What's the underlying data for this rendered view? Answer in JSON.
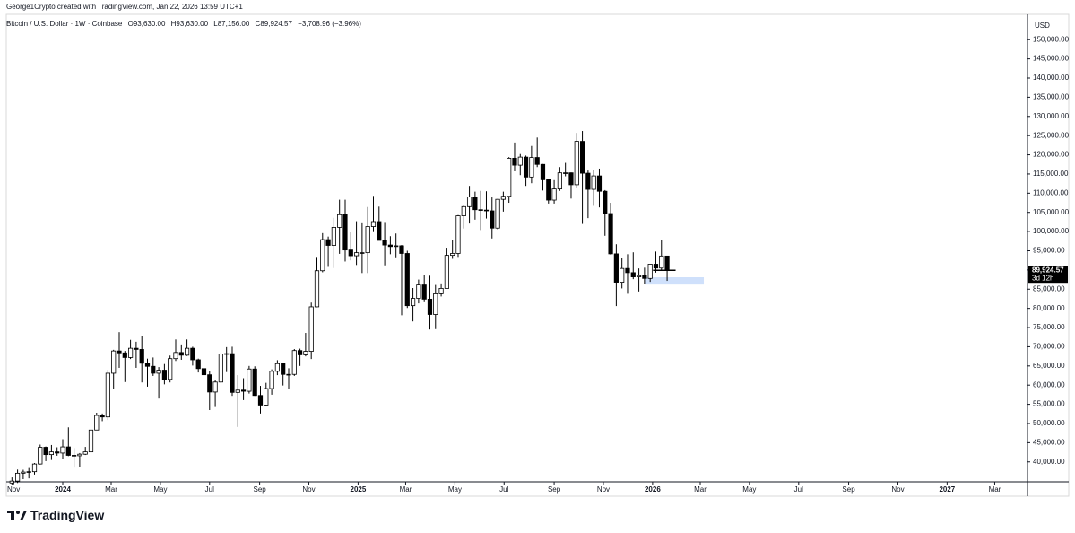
{
  "header": {
    "attribution": "George1Crypto created with TradingView.com, Jan 22, 2026 13:59 UTC+1",
    "brand": "TradingView"
  },
  "chart_data": {
    "type": "candlestick",
    "symbol": "Bitcoin / U.S. Dollar · 1W · Coinbase",
    "ohlc_labels": [
      "O93,630.00",
      "H93,630.00",
      "L87,156.00",
      "C89,924.57"
    ],
    "change_label": "−3,708.96 (−3.96%)",
    "currency": "USD",
    "last_price_label": "89,924.57",
    "countdown": "3d 12h",
    "up_color": "#ffffff",
    "down_color": "#000000",
    "zone_color": "#cfe0fb",
    "zone": [
      86200,
      88100
    ],
    "open": [
      34500,
      35000,
      37050,
      37350,
      37450,
      39450,
      43800,
      41900,
      42600,
      42300,
      43900,
      41700,
      41600,
      42000,
      42600,
      48300,
      52100,
      51700,
      63100,
      68900,
      68400,
      67200,
      69600,
      69300,
      65700,
      64900,
      63100,
      63900,
      61500,
      66900,
      68500,
      67800,
      69600,
      66600,
      64300,
      62700,
      58200,
      60800,
      68100,
      68200,
      58100,
      58700,
      58400,
      64200,
      57300,
      54800,
      59100,
      63600,
      65600,
      62800,
      62800,
      69000,
      67900,
      68800,
      80400,
      89800,
      97900,
      96400,
      101100,
      104400,
      95200,
      93700,
      94500,
      94500,
      101300,
      102600,
      97700,
      96500,
      96100,
      96300,
      94300,
      80700,
      82600,
      86100,
      82400,
      78400,
      83800,
      85200,
      93800,
      94300,
      104100,
      106500,
      109000,
      105700,
      105600,
      105400,
      100900,
      108400,
      109200,
      119100,
      117300,
      119400,
      114200,
      119300,
      117500,
      113500,
      108200,
      111100,
      115300,
      115300,
      112200,
      123500,
      115200,
      111000,
      114500,
      110500,
      104700,
      94200,
      86800,
      90400,
      89300,
      88200,
      88500,
      87800,
      91500,
      90500,
      93630
    ],
    "high": [
      35950,
      38000,
      37950,
      38400,
      39700,
      44500,
      44000,
      44400,
      43800,
      45900,
      49000,
      43600,
      42300,
      43900,
      48600,
      52800,
      52600,
      64000,
      69200,
      73800,
      68900,
      71800,
      71300,
      72800,
      66900,
      67200,
      64700,
      65500,
      67700,
      71900,
      70600,
      71900,
      70000,
      66900,
      64500,
      63700,
      61400,
      68300,
      69900,
      70000,
      62600,
      61800,
      65000,
      64900,
      59800,
      60600,
      64100,
      66500,
      65600,
      64400,
      69400,
      69500,
      73600,
      81500,
      93400,
      99600,
      98700,
      103600,
      108300,
      108300,
      99900,
      102700,
      102400,
      106400,
      109300,
      106500,
      102500,
      98800,
      99500,
      96500,
      95000,
      85300,
      87500,
      88800,
      88500,
      86100,
      86500,
      95800,
      97900,
      104300,
      107000,
      111900,
      110400,
      110600,
      110500,
      108900,
      108500,
      110400,
      119400,
      123200,
      120200,
      119800,
      122300,
      124500,
      117600,
      113600,
      113400,
      116800,
      117900,
      115400,
      125700,
      126200,
      115900,
      116100,
      116400,
      110800,
      107500,
      96700,
      93100,
      94100,
      94600,
      90400,
      90600,
      91500,
      94800,
      97900,
      93630
    ],
    "low": [
      34100,
      34500,
      35500,
      35700,
      36700,
      39300,
      40200,
      40500,
      41600,
      40700,
      41500,
      38500,
      38600,
      41800,
      42300,
      48300,
      50600,
      50900,
      59000,
      64500,
      60800,
      66800,
      64500,
      60700,
      59600,
      62400,
      56500,
      60200,
      60700,
      66300,
      66600,
      67600,
      65100,
      63300,
      58400,
      53500,
      54300,
      60600,
      63400,
      57200,
      49100,
      56100,
      57800,
      57200,
      52600,
      54600,
      57500,
      62600,
      59900,
      58900,
      62400,
      65000,
      67500,
      66800,
      80300,
      89400,
      90800,
      90500,
      94200,
      92200,
      92500,
      91300,
      89200,
      89200,
      100100,
      97800,
      91200,
      94100,
      93300,
      78200,
      80100,
      76600,
      81300,
      81600,
      74500,
      74600,
      83100,
      85200,
      92900,
      93400,
      100800,
      102100,
      103100,
      100400,
      103400,
      98200,
      100600,
      105200,
      107500,
      115700,
      114700,
      111900,
      112600,
      116800,
      110700,
      107300,
      107300,
      110600,
      114400,
      108600,
      111500,
      102000,
      103500,
      106700,
      106300,
      98900,
      94000,
      80600,
      85200,
      83800,
      87600,
      84400,
      86400,
      86900,
      89300,
      90000,
      87156
    ],
    "close": [
      35000,
      37050,
      37350,
      37450,
      39450,
      43800,
      41900,
      42600,
      42300,
      43900,
      41700,
      41600,
      42000,
      42600,
      48300,
      52100,
      51700,
      63100,
      68900,
      68400,
      67200,
      69600,
      69300,
      65700,
      64900,
      63100,
      63900,
      61500,
      66900,
      68500,
      67800,
      69600,
      66600,
      64300,
      62700,
      58200,
      60800,
      68100,
      68200,
      58100,
      58700,
      58400,
      64200,
      57300,
      54800,
      59100,
      63600,
      65600,
      62800,
      62800,
      69000,
      67900,
      68800,
      80400,
      89800,
      97900,
      96400,
      101100,
      104400,
      95200,
      93700,
      94500,
      94500,
      101300,
      102600,
      97700,
      96500,
      96100,
      96300,
      94300,
      80700,
      82600,
      86100,
      82400,
      78400,
      83800,
      85200,
      93800,
      94300,
      104100,
      106500,
      109000,
      105700,
      105600,
      105400,
      100900,
      108400,
      109200,
      119100,
      117300,
      119400,
      114200,
      119300,
      117500,
      113500,
      108200,
      111100,
      115300,
      115300,
      112200,
      123500,
      115200,
      111000,
      114500,
      110500,
      104700,
      94200,
      86800,
      90400,
      89300,
      88200,
      88500,
      87800,
      91500,
      90500,
      93630,
      89924.57
    ],
    "xlim": [
      -1,
      179.8
    ],
    "xticks": [
      {
        "value": 0.29,
        "label": "Nov"
      },
      {
        "value": 9,
        "label": "2024"
      },
      {
        "value": 17.57,
        "label": "Mar"
      },
      {
        "value": 26.29,
        "label": "May"
      },
      {
        "value": 35,
        "label": "Jul"
      },
      {
        "value": 43.86,
        "label": "Sep"
      },
      {
        "value": 52.57,
        "label": "Nov"
      },
      {
        "value": 61.29,
        "label": "2025"
      },
      {
        "value": 69.71,
        "label": "Mar"
      },
      {
        "value": 78.43,
        "label": "May"
      },
      {
        "value": 87.14,
        "label": "Jul"
      },
      {
        "value": 96,
        "label": "Sep"
      },
      {
        "value": 104.71,
        "label": "Nov"
      },
      {
        "value": 113.43,
        "label": "2026"
      },
      {
        "value": 121.86,
        "label": "Mar"
      },
      {
        "value": 130.57,
        "label": "May"
      },
      {
        "value": 139.29,
        "label": "Jul"
      },
      {
        "value": 148.14,
        "label": "Sep"
      },
      {
        "value": 156.86,
        "label": "Nov"
      },
      {
        "value": 165.57,
        "label": "2027"
      },
      {
        "value": 174,
        "label": "Mar"
      }
    ],
    "ylim": [
      34800,
      156600
    ],
    "yticks": [
      {
        "value": 40000,
        "label": "40,000.00"
      },
      {
        "value": 45000,
        "label": "45,000.00"
      },
      {
        "value": 50000,
        "label": "50,000.00"
      },
      {
        "value": 55000,
        "label": "55,000.00"
      },
      {
        "value": 60000,
        "label": "60,000.00"
      },
      {
        "value": 65000,
        "label": "65,000.00"
      },
      {
        "value": 70000,
        "label": "70,000.00"
      },
      {
        "value": 75000,
        "label": "75,000.00"
      },
      {
        "value": 80000,
        "label": "80,000.00"
      },
      {
        "value": 85000,
        "label": "85,000.00"
      },
      {
        "value": 90000,
        "label": "90,000.00"
      },
      {
        "value": 95000,
        "label": "95,000.00"
      },
      {
        "value": 100000,
        "label": "100,000.00"
      },
      {
        "value": 105000,
        "label": "105,000.00"
      },
      {
        "value": 110000,
        "label": "110,000.00"
      },
      {
        "value": 115000,
        "label": "115,000.00"
      },
      {
        "value": 120000,
        "label": "120,000.00"
      },
      {
        "value": 125000,
        "label": "125,000.00"
      },
      {
        "value": 130000,
        "label": "130,000.00"
      },
      {
        "value": 135000,
        "label": "135,000.00"
      },
      {
        "value": 140000,
        "label": "140,000.00"
      },
      {
        "value": 145000,
        "label": "145,000.00"
      },
      {
        "value": 150000,
        "label": "150,000.00"
      }
    ],
    "grid": false
  }
}
